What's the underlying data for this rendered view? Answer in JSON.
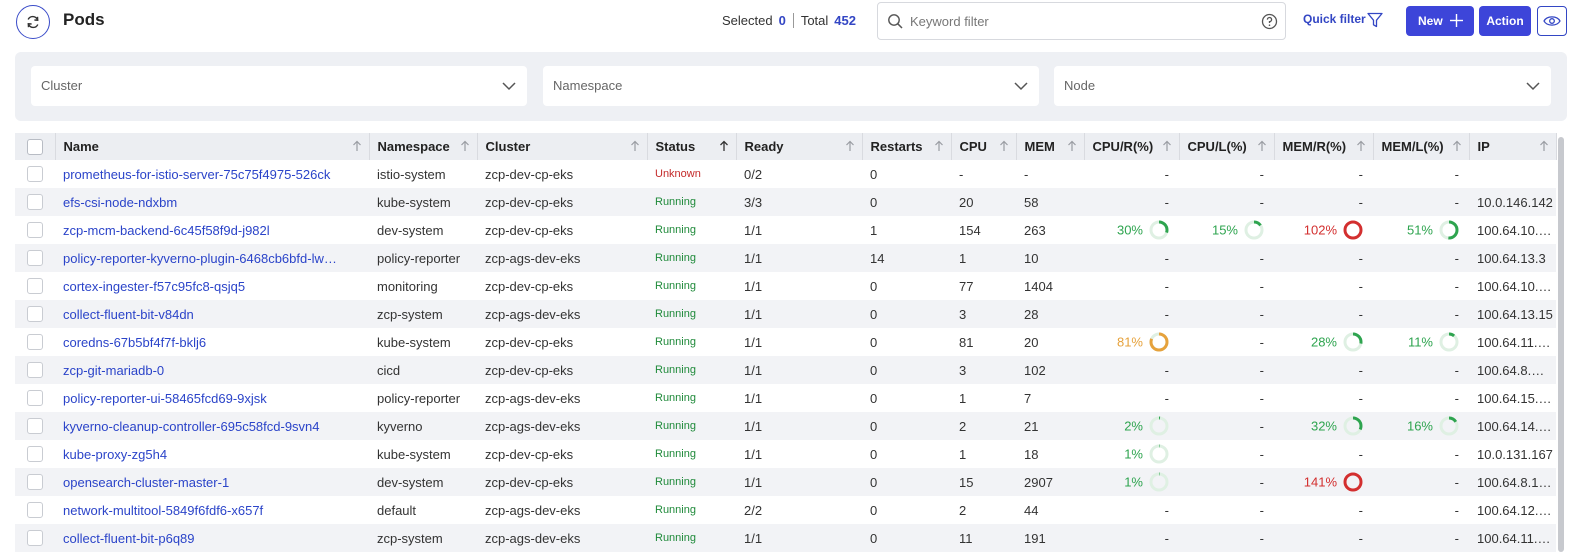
{
  "header": {
    "title": "Pods",
    "selected_label": "Selected",
    "selected_count": "0",
    "total_label": "Total",
    "total_count": "452",
    "search_placeholder": "Keyword filter",
    "quick_filter_label": "Quick filter",
    "new_label": "New",
    "action_label": "Action"
  },
  "filters": {
    "cluster": "Cluster",
    "namespace": "Namespace",
    "node": "Node"
  },
  "colors": {
    "accent": "#3d45d9",
    "link": "#2b44c9",
    "running": "#1f8a3a",
    "unknown": "#c42b2b",
    "pct_green": "#2ea44f",
    "pct_orange": "#e6a23c",
    "pct_red": "#d32f2f"
  },
  "columns": [
    "Name",
    "Namespace",
    "Cluster",
    "Status",
    "Ready",
    "Restarts",
    "CPU",
    "MEM",
    "CPU/R(%)",
    "CPU/L(%)",
    "MEM/R(%)",
    "MEM/L(%)",
    "IP"
  ],
  "rows": [
    {
      "name": "prometheus-for-istio-server-75c75f4975-526ck",
      "namespace": "istio-system",
      "cluster": "zcp-dev-cp-eks",
      "status": "Unknown",
      "ready": "0/2",
      "restarts": "0",
      "cpu": "-",
      "mem": "-",
      "cpu_r": "-",
      "cpu_l": "-",
      "mem_r": "-",
      "mem_l": "-",
      "ip": ""
    },
    {
      "name": "efs-csi-node-ndxbm",
      "namespace": "kube-system",
      "cluster": "zcp-dev-cp-eks",
      "status": "Running",
      "ready": "3/3",
      "restarts": "0",
      "cpu": "20",
      "mem": "58",
      "cpu_r": "-",
      "cpu_l": "-",
      "mem_r": "-",
      "mem_l": "-",
      "ip": "10.0.146.142"
    },
    {
      "name": "zcp-mcm-backend-6c45f58f9d-j982l",
      "namespace": "dev-system",
      "cluster": "zcp-dev-cp-eks",
      "status": "Running",
      "ready": "1/1",
      "restarts": "1",
      "cpu": "154",
      "mem": "263",
      "cpu_r": "30%",
      "cpu_l": "15%",
      "mem_r": "102%",
      "mem_l": "51%",
      "ip": "100.64.10.…"
    },
    {
      "name": "policy-reporter-kyverno-plugin-6468cb6bfd-lw…",
      "namespace": "policy-reporter",
      "cluster": "zcp-ags-dev-eks",
      "status": "Running",
      "ready": "1/1",
      "restarts": "14",
      "cpu": "1",
      "mem": "10",
      "cpu_r": "-",
      "cpu_l": "-",
      "mem_r": "-",
      "mem_l": "-",
      "ip": "100.64.13.3"
    },
    {
      "name": "cortex-ingester-f57c95fc8-qsjq5",
      "namespace": "monitoring",
      "cluster": "zcp-dev-cp-eks",
      "status": "Running",
      "ready": "1/1",
      "restarts": "0",
      "cpu": "77",
      "mem": "1404",
      "cpu_r": "-",
      "cpu_l": "-",
      "mem_r": "-",
      "mem_l": "-",
      "ip": "100.64.10.…"
    },
    {
      "name": "collect-fluent-bit-v84dn",
      "namespace": "zcp-system",
      "cluster": "zcp-ags-dev-eks",
      "status": "Running",
      "ready": "1/1",
      "restarts": "0",
      "cpu": "3",
      "mem": "28",
      "cpu_r": "-",
      "cpu_l": "-",
      "mem_r": "-",
      "mem_l": "-",
      "ip": "100.64.13.15"
    },
    {
      "name": "coredns-67b5bf4f7f-bklj6",
      "namespace": "kube-system",
      "cluster": "zcp-dev-cp-eks",
      "status": "Running",
      "ready": "1/1",
      "restarts": "0",
      "cpu": "81",
      "mem": "20",
      "cpu_r": "81%",
      "cpu_l": "-",
      "mem_r": "28%",
      "mem_l": "11%",
      "ip": "100.64.11.…"
    },
    {
      "name": "zcp-git-mariadb-0",
      "namespace": "cicd",
      "cluster": "zcp-dev-cp-eks",
      "status": "Running",
      "ready": "1/1",
      "restarts": "0",
      "cpu": "3",
      "mem": "102",
      "cpu_r": "-",
      "cpu_l": "-",
      "mem_r": "-",
      "mem_l": "-",
      "ip": "100.64.8.…"
    },
    {
      "name": "policy-reporter-ui-58465fcd69-9xjsk",
      "namespace": "policy-reporter",
      "cluster": "zcp-ags-dev-eks",
      "status": "Running",
      "ready": "1/1",
      "restarts": "0",
      "cpu": "1",
      "mem": "7",
      "cpu_r": "-",
      "cpu_l": "-",
      "mem_r": "-",
      "mem_l": "-",
      "ip": "100.64.15.…"
    },
    {
      "name": "kyverno-cleanup-controller-695c58fcd-9svn4",
      "namespace": "kyverno",
      "cluster": "zcp-ags-dev-eks",
      "status": "Running",
      "ready": "1/1",
      "restarts": "0",
      "cpu": "2",
      "mem": "21",
      "cpu_r": "2%",
      "cpu_l": "-",
      "mem_r": "32%",
      "mem_l": "16%",
      "ip": "100.64.14.…"
    },
    {
      "name": "kube-proxy-zg5h4",
      "namespace": "kube-system",
      "cluster": "zcp-dev-cp-eks",
      "status": "Running",
      "ready": "1/1",
      "restarts": "0",
      "cpu": "1",
      "mem": "18",
      "cpu_r": "1%",
      "cpu_l": "-",
      "mem_r": "-",
      "mem_l": "-",
      "ip": "10.0.131.167"
    },
    {
      "name": "opensearch-cluster-master-1",
      "namespace": "dev-system",
      "cluster": "zcp-dev-cp-eks",
      "status": "Running",
      "ready": "1/1",
      "restarts": "0",
      "cpu": "15",
      "mem": "2907",
      "cpu_r": "1%",
      "cpu_l": "-",
      "mem_r": "141%",
      "mem_l": "-",
      "ip": "100.64.8.1…"
    },
    {
      "name": "network-multitool-5849f6fdf6-x657f",
      "namespace": "default",
      "cluster": "zcp-ags-dev-eks",
      "status": "Running",
      "ready": "2/2",
      "restarts": "0",
      "cpu": "2",
      "mem": "44",
      "cpu_r": "-",
      "cpu_l": "-",
      "mem_r": "-",
      "mem_l": "-",
      "ip": "100.64.12.…"
    },
    {
      "name": "collect-fluent-bit-p6q89",
      "namespace": "zcp-system",
      "cluster": "zcp-ags-dev-eks",
      "status": "Running",
      "ready": "1/1",
      "restarts": "0",
      "cpu": "11",
      "mem": "191",
      "cpu_r": "-",
      "cpu_l": "-",
      "mem_r": "-",
      "mem_l": "-",
      "ip": "100.64.11.…"
    }
  ]
}
